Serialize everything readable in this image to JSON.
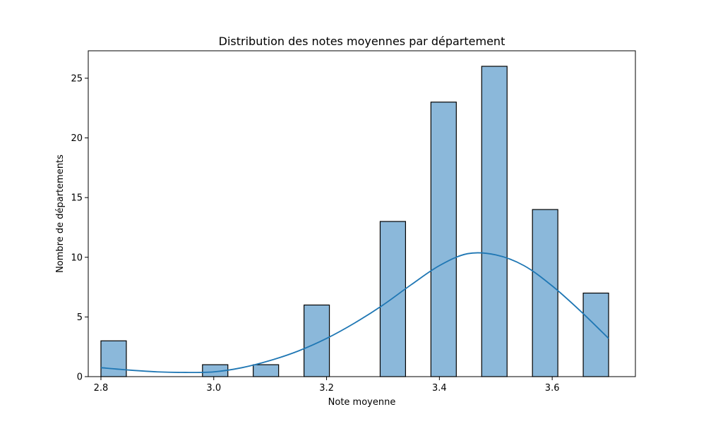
{
  "chart_data": {
    "type": "bar",
    "title": "Distribution des notes moyennes par département",
    "xlabel": "Note moyenne",
    "ylabel": "Nombre de départements",
    "xlim": [
      2.7775,
      3.7475
    ],
    "ylim": [
      0,
      27.3
    ],
    "xticks": [
      2.8,
      3.0,
      3.2,
      3.4,
      3.6
    ],
    "xtick_labels": [
      "2.8",
      "3.0",
      "3.2",
      "3.4",
      "3.6"
    ],
    "yticks": [
      0,
      5,
      10,
      15,
      20,
      25
    ],
    "ytick_labels": [
      "0",
      "5",
      "10",
      "15",
      "20",
      "25"
    ],
    "bins": {
      "bin_width": 0.045,
      "bin_starts": [
        2.8,
        2.98,
        3.07,
        3.16,
        3.295,
        3.385,
        3.475,
        3.565,
        3.655
      ],
      "counts": [
        3,
        1,
        1,
        6,
        13,
        23,
        26,
        14,
        7
      ]
    },
    "kde": {
      "x": [
        2.8,
        2.85,
        2.9,
        2.95,
        3.0,
        3.05,
        3.1,
        3.15,
        3.2,
        3.25,
        3.3,
        3.35,
        3.4,
        3.45,
        3.5,
        3.55,
        3.6,
        3.65,
        3.7
      ],
      "y": [
        0.75,
        0.55,
        0.4,
        0.35,
        0.4,
        0.75,
        1.35,
        2.15,
        3.2,
        4.5,
        6.0,
        7.7,
        9.3,
        10.3,
        10.2,
        9.3,
        7.6,
        5.5,
        3.2
      ]
    },
    "bar_fill": "#8bb8da",
    "bar_edge": "#000000",
    "kde_color": "#1f77b4",
    "grid": false,
    "legend": "none"
  }
}
